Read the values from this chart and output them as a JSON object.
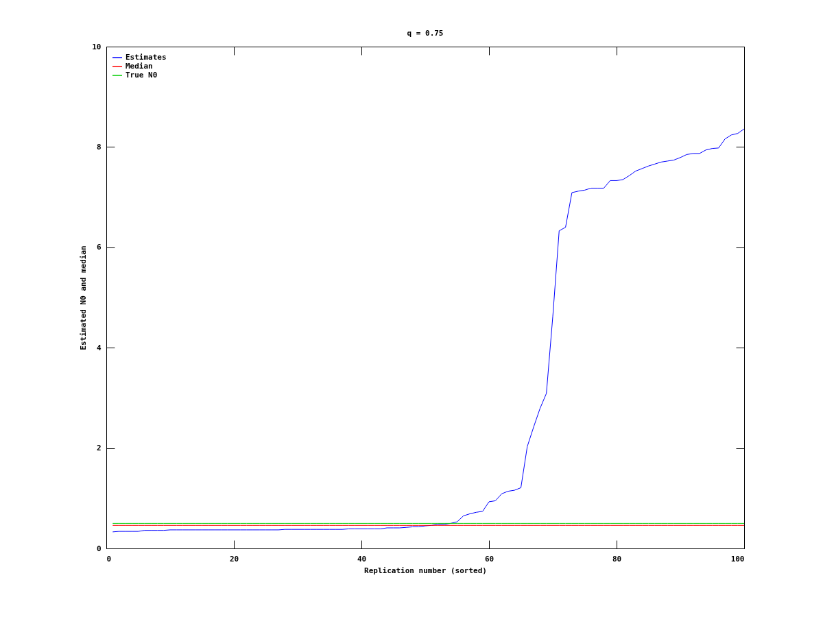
{
  "chart_data": {
    "type": "line",
    "title": "q = 0.75",
    "xlabel": "Replication number (sorted)",
    "ylabel": "Estimated N0 and median",
    "x": [
      1,
      2,
      3,
      4,
      5,
      6,
      7,
      8,
      9,
      10,
      11,
      12,
      13,
      14,
      15,
      16,
      17,
      18,
      19,
      20,
      21,
      22,
      23,
      24,
      25,
      26,
      27,
      28,
      29,
      30,
      31,
      32,
      33,
      34,
      35,
      36,
      37,
      38,
      39,
      40,
      41,
      42,
      43,
      44,
      45,
      46,
      47,
      48,
      49,
      50,
      51,
      52,
      53,
      54,
      55,
      56,
      57,
      58,
      59,
      60,
      61,
      62,
      63,
      64,
      65,
      66,
      67,
      68,
      69,
      70,
      71,
      72,
      73,
      74,
      75,
      76,
      77,
      78,
      79,
      80,
      81,
      82,
      83,
      84,
      85,
      86,
      87,
      88,
      89,
      90,
      91,
      92,
      93,
      94,
      95,
      96,
      97,
      98,
      99,
      100
    ],
    "series": [
      {
        "name": "Estimates",
        "color": "#0000ff",
        "values": [
          0.33,
          0.34,
          0.34,
          0.34,
          0.34,
          0.36,
          0.36,
          0.36,
          0.36,
          0.37,
          0.37,
          0.37,
          0.37,
          0.37,
          0.37,
          0.37,
          0.37,
          0.37,
          0.37,
          0.37,
          0.37,
          0.37,
          0.37,
          0.37,
          0.37,
          0.37,
          0.37,
          0.38,
          0.38,
          0.38,
          0.38,
          0.38,
          0.38,
          0.38,
          0.38,
          0.38,
          0.38,
          0.39,
          0.39,
          0.39,
          0.39,
          0.39,
          0.39,
          0.41,
          0.41,
          0.41,
          0.42,
          0.43,
          0.43,
          0.45,
          0.46,
          0.48,
          0.48,
          0.5,
          0.53,
          0.65,
          0.69,
          0.72,
          0.74,
          0.93,
          0.95,
          1.09,
          1.14,
          1.16,
          1.21,
          2.03,
          2.42,
          2.79,
          3.09,
          4.62,
          6.33,
          6.4,
          7.09,
          7.12,
          7.14,
          7.18,
          7.18,
          7.18,
          7.33,
          7.33,
          7.35,
          7.43,
          7.52,
          7.57,
          7.62,
          7.66,
          7.7,
          7.72,
          7.74,
          7.79,
          7.85,
          7.87,
          7.87,
          7.94,
          7.97,
          7.98,
          8.16,
          8.24,
          8.27,
          8.36
        ]
      },
      {
        "name": "Median",
        "color": "#ff0000",
        "values": [
          0.46,
          0.46,
          0.46,
          0.46,
          0.46,
          0.46,
          0.46,
          0.46,
          0.46,
          0.46,
          0.46,
          0.46,
          0.46,
          0.46,
          0.46,
          0.46,
          0.46,
          0.46,
          0.46,
          0.46,
          0.46,
          0.46,
          0.46,
          0.46,
          0.46,
          0.46,
          0.46,
          0.46,
          0.46,
          0.46,
          0.46,
          0.46,
          0.46,
          0.46,
          0.46,
          0.46,
          0.46,
          0.46,
          0.46,
          0.46,
          0.46,
          0.46,
          0.46,
          0.46,
          0.46,
          0.46,
          0.46,
          0.46,
          0.46,
          0.46,
          0.46,
          0.46,
          0.46,
          0.46,
          0.46,
          0.46,
          0.46,
          0.46,
          0.46,
          0.46,
          0.46,
          0.46,
          0.46,
          0.46,
          0.46,
          0.46,
          0.46,
          0.46,
          0.46,
          0.46,
          0.46,
          0.46,
          0.46,
          0.46,
          0.46,
          0.46,
          0.46,
          0.46,
          0.46,
          0.46,
          0.46,
          0.46,
          0.46,
          0.46,
          0.46,
          0.46,
          0.46,
          0.46,
          0.46,
          0.46,
          0.46,
          0.46,
          0.46,
          0.46,
          0.46,
          0.46,
          0.46,
          0.46,
          0.46,
          0.46
        ]
      },
      {
        "name": "True N0",
        "color": "#00cc00",
        "values": [
          0.5,
          0.5,
          0.5,
          0.5,
          0.5,
          0.5,
          0.5,
          0.5,
          0.5,
          0.5,
          0.5,
          0.5,
          0.5,
          0.5,
          0.5,
          0.5,
          0.5,
          0.5,
          0.5,
          0.5,
          0.5,
          0.5,
          0.5,
          0.5,
          0.5,
          0.5,
          0.5,
          0.5,
          0.5,
          0.5,
          0.5,
          0.5,
          0.5,
          0.5,
          0.5,
          0.5,
          0.5,
          0.5,
          0.5,
          0.5,
          0.5,
          0.5,
          0.5,
          0.5,
          0.5,
          0.5,
          0.5,
          0.5,
          0.5,
          0.5,
          0.5,
          0.5,
          0.5,
          0.5,
          0.5,
          0.5,
          0.5,
          0.5,
          0.5,
          0.5,
          0.5,
          0.5,
          0.5,
          0.5,
          0.5,
          0.5,
          0.5,
          0.5,
          0.5,
          0.5,
          0.5,
          0.5,
          0.5,
          0.5,
          0.5,
          0.5,
          0.5,
          0.5,
          0.5,
          0.5,
          0.5,
          0.5,
          0.5,
          0.5,
          0.5,
          0.5,
          0.5,
          0.5,
          0.5,
          0.5,
          0.5,
          0.5,
          0.5,
          0.5,
          0.5,
          0.5,
          0.5,
          0.5,
          0.5,
          0.5
        ]
      }
    ],
    "xlim": [
      0,
      100
    ],
    "ylim": [
      0,
      10
    ],
    "xticks": [
      0,
      20,
      40,
      60,
      80,
      100
    ],
    "yticks": [
      0,
      2,
      4,
      6,
      8,
      10
    ],
    "grid": false,
    "legend": "top left",
    "marker": "none",
    "line_style": "solid"
  }
}
